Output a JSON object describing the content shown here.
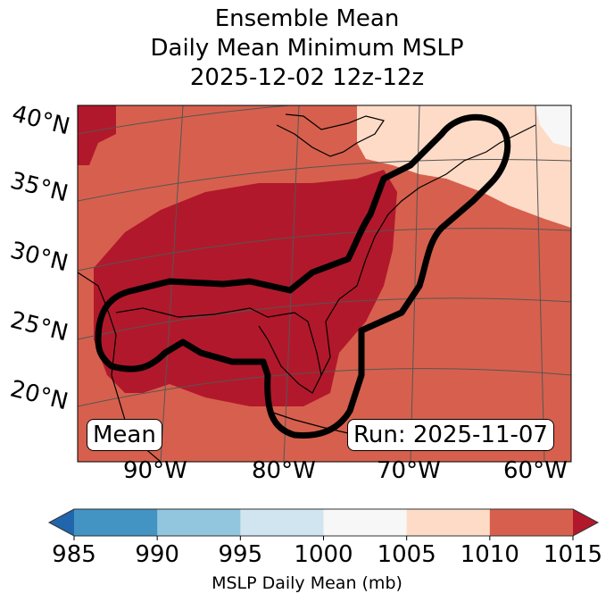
{
  "title": {
    "line1": "Ensemble Mean",
    "line2": "Daily Mean Minimum MSLP",
    "line3": "2025-12-02 12z-12z"
  },
  "lat_labels": [
    "40°N",
    "35°N",
    "30°N",
    "25°N",
    "20°N"
  ],
  "lon_labels": [
    "90°W",
    "80°W",
    "70°W",
    "60°W"
  ],
  "mean_box": "Mean",
  "run_box": "Run: 2025-11-07",
  "colorbar": {
    "label": "MSLP Daily Mean (mb)",
    "ticks": [
      "985",
      "990",
      "995",
      "1000",
      "1005",
      "1010",
      "1015"
    ],
    "colors": [
      "#2166ac",
      "#4393c3",
      "#92c5de",
      "#d1e5f0",
      "#f7f7f7",
      "#fddbc7",
      "#d6604d",
      "#b2182b"
    ],
    "extend": "both"
  }
}
